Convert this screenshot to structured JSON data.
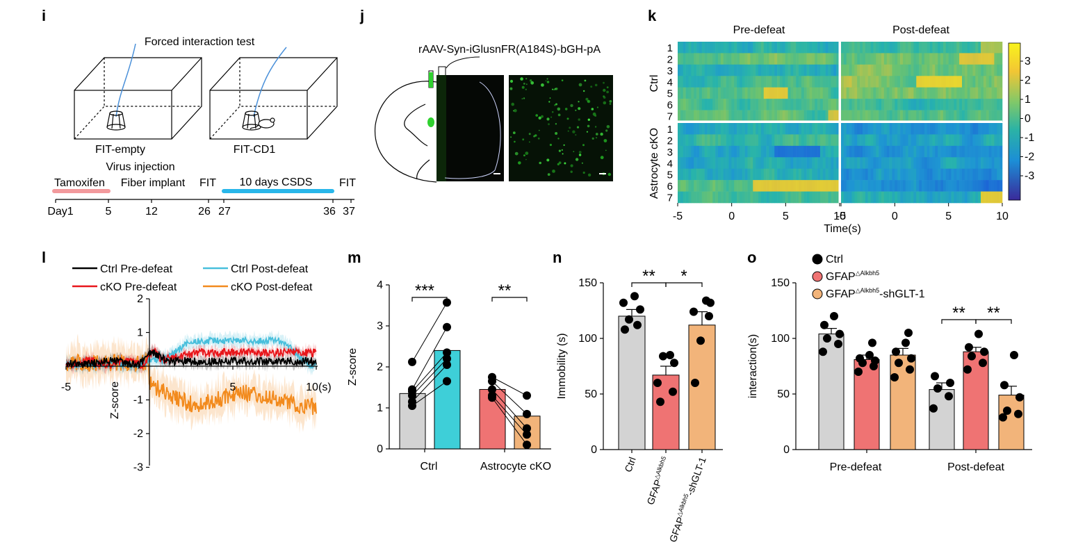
{
  "panels": {
    "i": {
      "label": "i",
      "title": "Forced interaction test",
      "box_left_label": "FIT-empty",
      "box_right_label": "FIT-CD1",
      "timeline": {
        "tamoxifen": "Tamoxifen",
        "virus1": "Virus injection",
        "virus2": "Fiber implant",
        "fit1": "FIT",
        "csds": "10 days CSDS",
        "fit2": "FIT",
        "ticks": [
          "Day1",
          "5",
          "12",
          "26",
          "27",
          "36",
          "37"
        ],
        "tamoxifen_color": "#f29a9d",
        "csds_color": "#29b7ea"
      }
    },
    "j": {
      "label": "j",
      "virus": "rAAV-Syn-iGlusnFR(A184S)-bGH-pA",
      "green": "#2fd12f"
    },
    "k": {
      "label": "k",
      "pre": "Pre-defeat",
      "post": "Post-defeat",
      "ctrl": "Ctrl",
      "cko": "Astrocyte cKO",
      "rows": [
        "1",
        "2",
        "3",
        "4",
        "5",
        "6",
        "7"
      ],
      "xticks": [
        "-5",
        "0",
        "5",
        "10"
      ],
      "xlabel": "Time(s)",
      "cbar_ticks": [
        "3",
        "2",
        "1",
        "0",
        "-1",
        "-2",
        "-3"
      ]
    },
    "l": {
      "label": "l"
    },
    "m": {
      "label": "m"
    },
    "n": {
      "label": "n"
    },
    "o": {
      "label": "o",
      "star_left": "**",
      "star_right": "**"
    }
  },
  "chart_data": [
    {
      "id": "k",
      "type": "heatmap",
      "title": "Pre-defeat / Post-defeat",
      "groups": [
        "Ctrl",
        "Astrocyte cKO"
      ],
      "xlabel": "Time(s)",
      "xlim": [
        -5,
        10
      ],
      "clim": [
        -3.5,
        3.5
      ],
      "cbar_ticks": [
        3,
        2,
        1,
        0,
        -1,
        -2,
        -3
      ]
    },
    {
      "id": "l",
      "type": "line",
      "ylabel": "Z-score",
      "xunit": "(s)",
      "xlim": [
        -5,
        10
      ],
      "ylim": [
        -3,
        2
      ],
      "xticks": [
        "-5",
        "5",
        "10"
      ],
      "yticks": [
        "2",
        "1",
        "-1",
        "-2",
        "-3"
      ],
      "series": [
        {
          "name": "Ctrl Pre-defeat",
          "color": "#000000"
        },
        {
          "name": "Ctrl Post-defeat",
          "color": "#48bfdc"
        },
        {
          "name": "cKO Pre-defeat",
          "color": "#e8161b"
        },
        {
          "name": "cKO Post-defeat",
          "color": "#f28a1d"
        }
      ]
    },
    {
      "id": "m",
      "type": "bar",
      "ylabel": "Z-score",
      "ylim": [
        0,
        4
      ],
      "yticks": [
        "4",
        "3",
        "2",
        "1",
        "0"
      ],
      "categories": [
        "Ctrl",
        "Astrocyte cKO"
      ],
      "series": [
        {
          "name": "Pre-defeat",
          "values": [
            1.35,
            1.45
          ],
          "colors": [
            "#d3d3d3",
            "#ef7373"
          ]
        },
        {
          "name": "Post-defeat",
          "values": [
            2.4,
            0.8
          ],
          "colors": [
            "#3ecfd8",
            "#f2b47a"
          ]
        }
      ],
      "points": {
        "ctrl_pre": [
          1.05,
          1.15,
          1.3,
          1.4,
          1.45,
          2.12
        ],
        "ctrl_post": [
          1.65,
          2.05,
          2.2,
          2.35,
          2.97,
          3.57
        ],
        "cko_pre": [
          1.25,
          1.3,
          1.45,
          1.65,
          1.75
        ],
        "cko_post": [
          0.1,
          0.35,
          0.5,
          0.85,
          1.3
        ]
      },
      "significance": [
        "***",
        "**"
      ]
    },
    {
      "id": "n",
      "type": "bar",
      "ylabel": "Immobility (s)",
      "ylim": [
        0,
        150
      ],
      "yticks": [
        "150",
        "100",
        "50",
        "0"
      ],
      "categories": [
        "Ctrl",
        "GFAP△Alkbh5",
        "GFAP△Alkbh5-shGLT-1"
      ],
      "values": [
        120,
        67,
        112
      ],
      "errors": [
        6,
        8,
        12
      ],
      "colors": [
        "#d3d3d3",
        "#ef7373",
        "#f2b47a"
      ],
      "points": [
        [
          108,
          112,
          117,
          126,
          132,
          138
        ],
        [
          43,
          52,
          60,
          78,
          84,
          85
        ],
        [
          60,
          98,
          120,
          124,
          132,
          134
        ]
      ],
      "significance": [
        "**",
        "*"
      ],
      "tick_parts": [
        {
          "main": "Ctrl",
          "sup": "",
          "tail": ""
        },
        {
          "main": "GFAP",
          "sup": "△Alkbh5",
          "tail": ""
        },
        {
          "main": "GFAP",
          "sup": "△Alkbh5",
          "tail": "-shGLT-1"
        }
      ]
    },
    {
      "id": "o",
      "type": "bar",
      "ylabel": "interaction(s)",
      "ylim": [
        0,
        150
      ],
      "yticks": [
        "150",
        "100",
        "50",
        "0"
      ],
      "categories": [
        "Pre-defeat",
        "Post-defeat"
      ],
      "series": [
        {
          "name": "Ctrl",
          "values": [
            104,
            54
          ],
          "errors": [
            5,
            6
          ],
          "color": "#d3d3d3"
        },
        {
          "name": "GFAP△Alkbh5",
          "values": [
            81,
            88
          ],
          "errors": [
            4,
            4
          ],
          "color": "#ef7373"
        },
        {
          "name": "GFAP△Alkbh5-shGLT-1",
          "values": [
            85,
            49
          ],
          "errors": [
            6,
            8
          ],
          "color": "#f2b47a"
        }
      ],
      "points": [
        [
          [
            88,
            95,
            100,
            104,
            112,
            120
          ],
          [
            37,
            48,
            55,
            60,
            66
          ]
        ],
        [
          [
            70,
            75,
            78,
            80,
            82,
            85,
            96
          ],
          [
            72,
            78,
            84,
            88,
            92,
            104
          ]
        ],
        [
          [
            65,
            72,
            78,
            82,
            88,
            96,
            105
          ],
          [
            29,
            32,
            35,
            47,
            58,
            85
          ]
        ]
      ],
      "legend": [
        {
          "main": "Ctrl",
          "sup": "",
          "tail": ""
        },
        {
          "main": "GFAP",
          "sup": "△Alkbh5",
          "tail": ""
        },
        {
          "main": "GFAP",
          "sup": "△Alkbh5",
          "tail": "-shGLT-1"
        }
      ],
      "significance": [
        "**",
        "**"
      ]
    }
  ]
}
